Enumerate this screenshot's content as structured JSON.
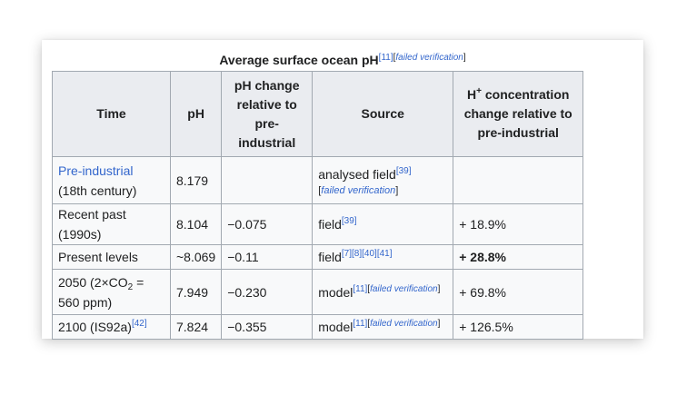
{
  "caption": {
    "title": "Average surface ocean pH",
    "ref": "[11]",
    "fv_open": "[",
    "fv_text": "failed verification",
    "fv_close": "]"
  },
  "headers": {
    "time": "Time",
    "ph": "pH",
    "ph_change": "pH change relative to pre-industrial",
    "source": "Source",
    "h_label": "H",
    "h_sup": "+",
    "h_rest": " concentration change relative to pre-industrial"
  },
  "rows": [
    {
      "time_link": "Pre-industrial",
      "time_rest": " (18th century)",
      "ph": "8.179",
      "change": "",
      "source_text": "analysed field",
      "source_ref": "[39]",
      "fv_open": "[",
      "fv_text": "failed verification",
      "fv_close": "]",
      "h_change": ""
    },
    {
      "time": "Recent past (1990s)",
      "ph": "8.104",
      "change": "−0.075",
      "source_text": "field",
      "source_ref": "[39]",
      "h_change": "+ 18.9%"
    },
    {
      "time": "Present levels",
      "ph": "~8.069",
      "change": "−0.11",
      "source_text": "field",
      "source_ref": "[7][8][40][41]",
      "h_change": "+ 28.8%"
    },
    {
      "time_a": "2050 (2×CO",
      "time_sub": "2",
      "time_b": " = 560 ppm)",
      "ph": "7.949",
      "change": "−0.230",
      "source_text": "model",
      "source_ref": "[11]",
      "fv_open": "[",
      "fv_text": "failed verification",
      "fv_close": "]",
      "h_change": "+ 69.8%"
    },
    {
      "time": "2100 (IS92a)",
      "time_ref": "[42]",
      "ph": "7.824",
      "change": "−0.355",
      "source_text": "model",
      "source_ref": "[11]",
      "fv_open": "[",
      "fv_text": "failed verification",
      "fv_close": "]",
      "h_change": "+ 126.5%"
    }
  ],
  "colors": {
    "link": "#3366cc",
    "header_bg": "#eaecf0",
    "cell_bg": "#f8f9fa",
    "border": "#a2a9b1",
    "text": "#202122"
  }
}
